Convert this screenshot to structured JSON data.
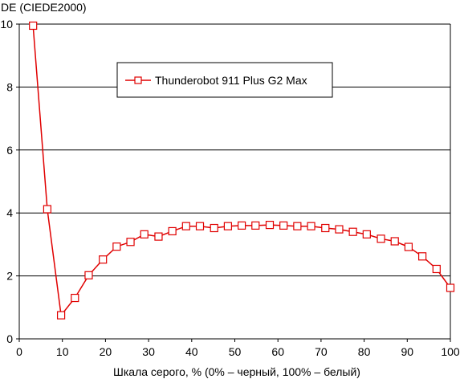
{
  "chart_data": {
    "type": "line",
    "ylabel": "DE (CIEDE2000)",
    "xlabel": "Шкала серого, % (0% – черный, 100% – белый)",
    "xlim": [
      0,
      100
    ],
    "ylim": [
      0,
      10
    ],
    "x_ticks": [
      0,
      10,
      20,
      30,
      40,
      50,
      60,
      70,
      80,
      90,
      100
    ],
    "y_ticks": [
      0,
      2,
      4,
      6,
      8,
      10
    ],
    "grid": "horizontal",
    "legend_position": "top-center",
    "series": [
      {
        "name": "Thunderobot 911 Plus G2 Max",
        "color": "#e00000",
        "marker": "square",
        "x": [
          3.2,
          6.5,
          9.7,
          12.9,
          16.1,
          19.4,
          22.6,
          25.8,
          29.0,
          32.3,
          35.5,
          38.7,
          41.9,
          45.2,
          48.4,
          51.6,
          54.8,
          58.1,
          61.3,
          64.5,
          67.7,
          71.0,
          74.2,
          77.4,
          80.6,
          83.9,
          87.1,
          90.3,
          93.5,
          96.8,
          100
        ],
        "y": [
          9.95,
          4.12,
          0.75,
          1.3,
          2.02,
          2.52,
          2.93,
          3.08,
          3.32,
          3.25,
          3.42,
          3.58,
          3.58,
          3.52,
          3.58,
          3.6,
          3.6,
          3.62,
          3.6,
          3.58,
          3.58,
          3.52,
          3.48,
          3.4,
          3.32,
          3.18,
          3.1,
          2.92,
          2.62,
          2.22,
          1.62
        ]
      }
    ]
  }
}
